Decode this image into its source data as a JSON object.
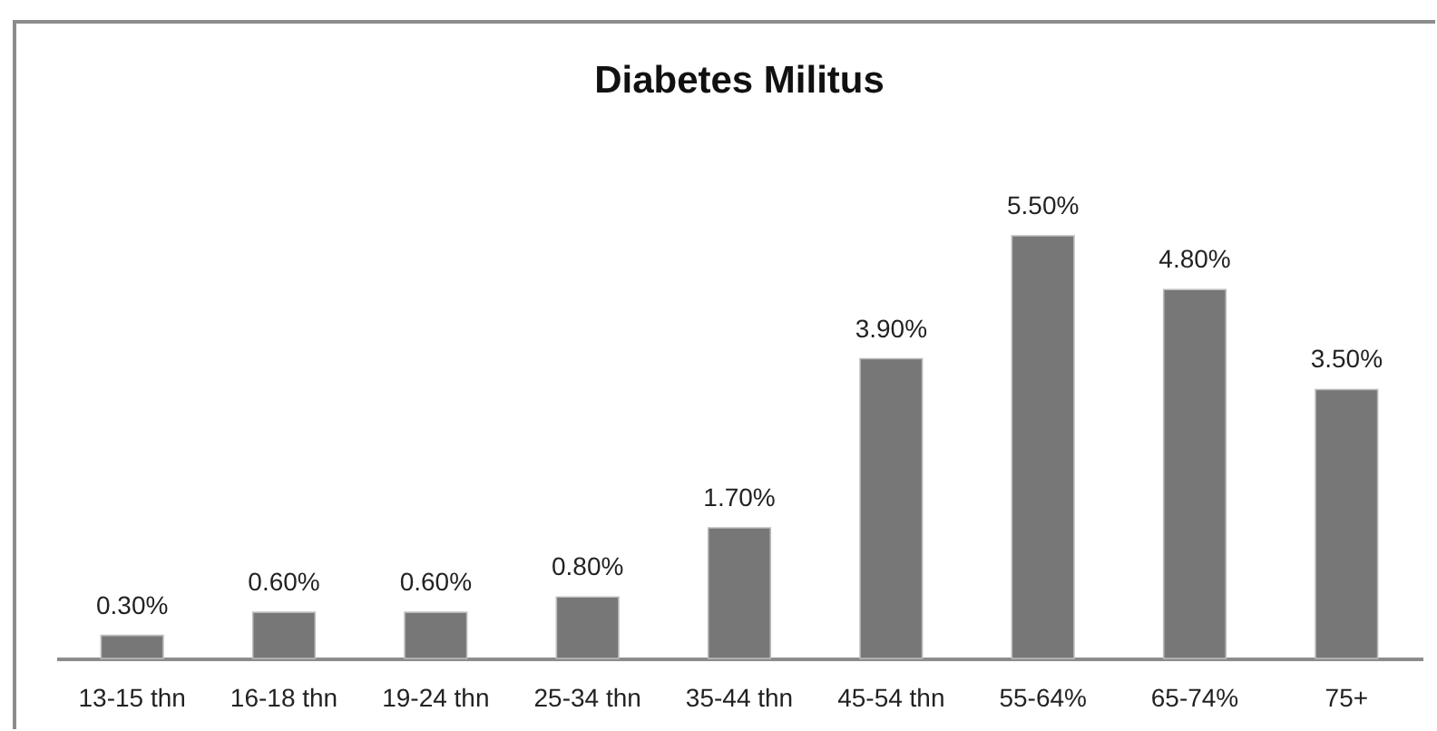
{
  "chart_data": {
    "type": "bar",
    "title": "Diabetes Militus",
    "categories": [
      "13-15 thn",
      "16-18 thn",
      "19-24 thn",
      "25-34 thn",
      "35-44 thn",
      "45-54 thn",
      "55-64%",
      "65-74%",
      "75+"
    ],
    "values": [
      0.3,
      0.6,
      0.6,
      0.8,
      1.7,
      3.9,
      5.5,
      4.8,
      3.5
    ],
    "value_labels": [
      "0.30%",
      "0.60%",
      "0.60%",
      "0.80%",
      "1.70%",
      "3.90%",
      "5.50%",
      "4.80%",
      "3.50%"
    ],
    "color": "#777777"
  }
}
